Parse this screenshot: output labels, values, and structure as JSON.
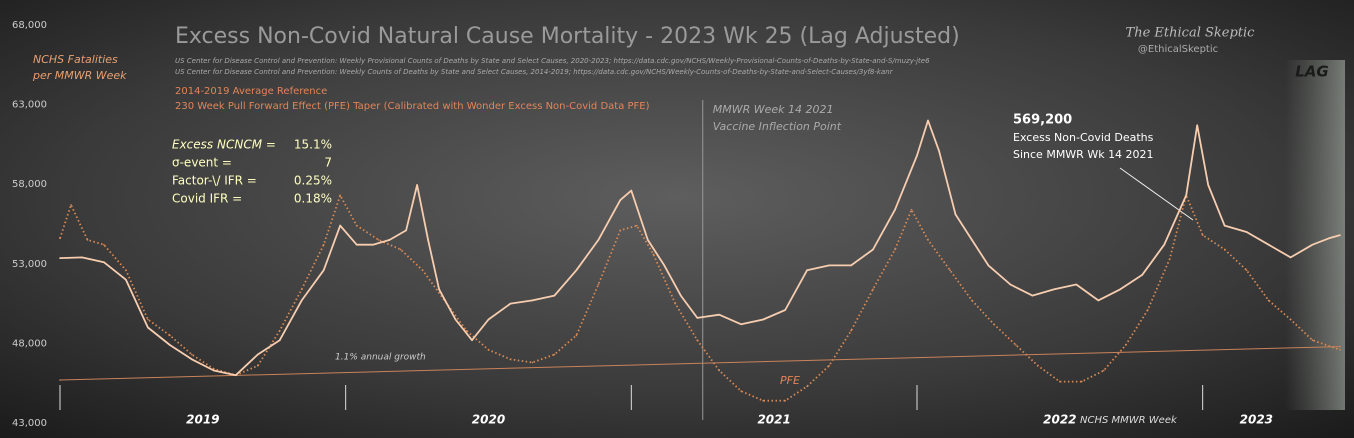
{
  "chart_data": {
    "type": "line",
    "title": "Excess Non-Covid Natural Cause Mortality - 2023 Wk 25 (Lag Adjusted)",
    "sources": [
      "US Center for Disease Control and Prevention: Weekly  Provisional Counts of Deaths by State and Select Causes, 2020-2023; https://data.cdc.gov/NCHS/Weekly-Provisional-Counts-of-Deaths-by-State-and-S/muzy-jte6",
      "US Center for Disease Control and Prevention: Weekly  Counts of Deaths by State and Select Causes, 2014-2019; https://data.cdc.gov/NCHS/Weekly-Counts-of-Deaths-by-State-and-Select-Causes/3yf8-kanr"
    ],
    "brand": "The Ethical Skeptic",
    "handle": "@EthicalSkeptic",
    "y_label": [
      "NCHS Fatalities",
      "per MMWR Week"
    ],
    "x_label": "NCHS MMWR Week",
    "year_labels": [
      "2019",
      "2020",
      "2021",
      "2022",
      "2023"
    ],
    "lag_label": "LAG",
    "xlim": [
      0,
      233
    ],
    "xticks": [
      0,
      52,
      104,
      156,
      208
    ],
    "ylim": [
      43000,
      68000
    ],
    "yticks": [
      {
        "value": 43000,
        "label": "43,000"
      },
      {
        "value": 48000,
        "label": "48,000"
      },
      {
        "value": 53000,
        "label": "53,000"
      },
      {
        "value": 58000,
        "label": "58,000"
      },
      {
        "value": 63000,
        "label": "63,000"
      },
      {
        "value": 68000,
        "label": "68,000"
      }
    ],
    "series": [
      {
        "color": "#f7cdb0",
        "style": "solid",
        "x": [
          0,
          4,
          8,
          12,
          16,
          20,
          24,
          28,
          32,
          36,
          40,
          44,
          48,
          51,
          54,
          57,
          60,
          63,
          65,
          67,
          69,
          72,
          75,
          78,
          82,
          86,
          90,
          94,
          98,
          102,
          104,
          107,
          110,
          113,
          116,
          120,
          124,
          128,
          132,
          136,
          140,
          144,
          148,
          152,
          156,
          158,
          160,
          163,
          166,
          169,
          173,
          177,
          181,
          185,
          189,
          193,
          197,
          201,
          205,
          207,
          209,
          212,
          216,
          220,
          224,
          228,
          231,
          233
        ],
        "values": [
          53360,
          53400,
          53100,
          52000,
          49000,
          47900,
          47000,
          46300,
          46000,
          47300,
          48200,
          50700,
          52600,
          55400,
          54200,
          54200,
          54500,
          55100,
          57950,
          54500,
          51400,
          49500,
          48200,
          49500,
          50500,
          50700,
          51000,
          52600,
          54500,
          57000,
          57600,
          54500,
          52900,
          51000,
          49600,
          49800,
          49200,
          49500,
          50100,
          52600,
          52900,
          52900,
          53900,
          56400,
          59800,
          62000,
          60100,
          56100,
          54500,
          52900,
          51700,
          51000,
          51400,
          51700,
          50700,
          51400,
          52300,
          54200,
          57300,
          61700,
          57950,
          55400,
          55000,
          54200,
          53400,
          54200,
          54600,
          54800
        ]
      },
      {
        "name": "230 Week Pull Forward Effect (PFE) Taper (Calibrated with Wonder Excess Non-Covid Data PFE)",
        "color": "#d98a55",
        "style": "dotted",
        "x": [
          0,
          2,
          5,
          8,
          12,
          16,
          20,
          24,
          28,
          32,
          36,
          40,
          44,
          48,
          51,
          54,
          58,
          62,
          66,
          70,
          74,
          78,
          82,
          86,
          90,
          94,
          98,
          102,
          105,
          108,
          112,
          116,
          120,
          124,
          128,
          132,
          136,
          140,
          144,
          148,
          152,
          155,
          158,
          162,
          166,
          170,
          174,
          178,
          182,
          186,
          190,
          194,
          198,
          202,
          205,
          208,
          212,
          216,
          220,
          224,
          228,
          233
        ],
        "values": [
          54600,
          56700,
          54500,
          54200,
          52600,
          49500,
          48500,
          47300,
          46400,
          46000,
          46600,
          48800,
          51400,
          54200,
          57300,
          55400,
          54500,
          53900,
          52600,
          50700,
          48800,
          47600,
          47000,
          46800,
          47300,
          48500,
          51700,
          55100,
          55400,
          53600,
          50500,
          48200,
          46300,
          45000,
          44400,
          44400,
          45300,
          46600,
          48800,
          51400,
          53900,
          56400,
          54500,
          52600,
          50700,
          49200,
          47900,
          46600,
          45600,
          45600,
          46300,
          47900,
          50100,
          53300,
          57300,
          54800,
          53900,
          52600,
          50700,
          49500,
          48200,
          47600
        ]
      },
      {
        "name": "2014-2019 Average Reference",
        "color": "#c9825a",
        "style": "thin",
        "x": [
          0,
          233
        ],
        "values": [
          45700,
          47800
        ]
      }
    ],
    "annotations": {
      "growth": "1.1% annual growth",
      "pfe": "PFE",
      "inflection": [
        "MMWR Week 14 2021",
        "Vaccine Inflection Point"
      ],
      "inflection_x": 117,
      "total": "569,200",
      "total_text": [
        "Excess Non-Covid Deaths",
        "Since MMWR Wk 14 2021"
      ]
    },
    "stats": [
      {
        "label": "Excess NCNCM =",
        "value": "15.1%"
      },
      {
        "label": "σ-event =",
        "value": "7"
      },
      {
        "label": "Factor-\\/ IFR =",
        "value": "0.25%"
      },
      {
        "label": "Covid IFR =",
        "value": "0.18%"
      }
    ]
  }
}
